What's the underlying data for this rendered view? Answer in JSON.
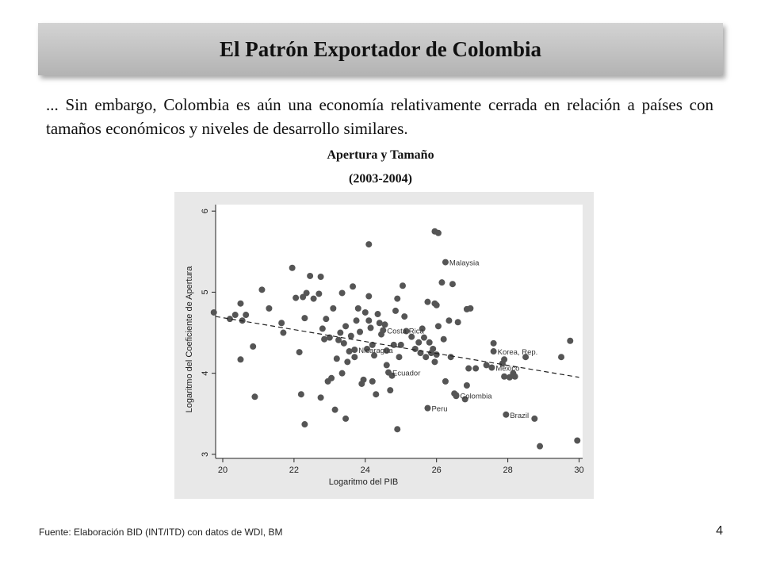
{
  "slide": {
    "title": "El Patrón Exportador de Colombia",
    "body": "... Sin embargo, Colombia es aún una economía relativamente cerrada en relación a países con tamaños económicos y niveles de desarrollo similares.",
    "chart_title": "Apertura y Tamaño",
    "chart_subtitle": "(2003-2004)",
    "footer": "Fuente: Elaboración BID (INT/ITD)  con datos de WDI, BM",
    "page_number": "4"
  },
  "colors": {
    "marker": "#555555",
    "panel_bg": "#e8e8e8",
    "plot_bg": "#ffffff",
    "fit_line": "#222222"
  },
  "chart_data": {
    "type": "scatter",
    "xlabel": "Logaritmo del PIB",
    "ylabel": "Logaritmo del Coeficiente de Apertura",
    "xlim": [
      19.8,
      30.1
    ],
    "ylim": [
      2.95,
      6.08
    ],
    "xticks": [
      20,
      22,
      24,
      26,
      28,
      30
    ],
    "yticks": [
      3,
      4,
      5,
      6
    ],
    "grid": false,
    "fit_line": {
      "style": "dashed",
      "x": [
        19.8,
        30.0
      ],
      "y": [
        4.7,
        3.95
      ]
    },
    "labeled_points": [
      {
        "label": "Malaysia",
        "x": 26.25,
        "y": 5.37
      },
      {
        "label": "Costa Rica",
        "x": 24.5,
        "y": 4.53
      },
      {
        "label": "Nicaragua",
        "x": 23.7,
        "y": 4.29
      },
      {
        "label": "Ecuador",
        "x": 24.65,
        "y": 4.01
      },
      {
        "label": "Korea, Rep.",
        "x": 27.6,
        "y": 4.27
      },
      {
        "label": "Mexico",
        "x": 27.55,
        "y": 4.07
      },
      {
        "label": "Colombia",
        "x": 26.55,
        "y": 3.73
      },
      {
        "label": "Peru",
        "x": 25.75,
        "y": 3.57
      },
      {
        "label": "Brazil",
        "x": 27.95,
        "y": 3.49
      }
    ],
    "points": [
      [
        19.75,
        4.75
      ],
      [
        20.2,
        4.67
      ],
      [
        20.35,
        4.72
      ],
      [
        20.5,
        4.86
      ],
      [
        20.55,
        4.65
      ],
      [
        20.65,
        4.72
      ],
      [
        20.85,
        4.33
      ],
      [
        20.9,
        3.71
      ],
      [
        20.5,
        4.17
      ],
      [
        21.1,
        5.03
      ],
      [
        21.3,
        4.8
      ],
      [
        21.65,
        4.62
      ],
      [
        21.7,
        4.5
      ],
      [
        21.95,
        5.3
      ],
      [
        22.05,
        4.93
      ],
      [
        22.15,
        4.26
      ],
      [
        22.2,
        3.74
      ],
      [
        22.25,
        4.94
      ],
      [
        22.3,
        4.68
      ],
      [
        22.35,
        4.99
      ],
      [
        22.3,
        3.37
      ],
      [
        22.45,
        5.2
      ],
      [
        22.55,
        4.92
      ],
      [
        22.7,
        4.98
      ],
      [
        22.75,
        5.19
      ],
      [
        22.75,
        3.7
      ],
      [
        22.8,
        4.55
      ],
      [
        22.85,
        4.42
      ],
      [
        22.9,
        4.67
      ],
      [
        22.95,
        3.9
      ],
      [
        23.0,
        4.44
      ],
      [
        23.05,
        3.94
      ],
      [
        23.1,
        4.8
      ],
      [
        23.15,
        3.55
      ],
      [
        23.2,
        4.18
      ],
      [
        23.25,
        4.41
      ],
      [
        23.3,
        4.5
      ],
      [
        23.35,
        4.0
      ],
      [
        23.45,
        4.58
      ],
      [
        23.35,
        4.99
      ],
      [
        23.4,
        4.37
      ],
      [
        23.45,
        3.44
      ],
      [
        23.5,
        4.14
      ],
      [
        23.55,
        4.27
      ],
      [
        23.6,
        4.46
      ],
      [
        23.65,
        5.07
      ],
      [
        23.7,
        4.2
      ],
      [
        23.75,
        4.65
      ],
      [
        23.8,
        4.8
      ],
      [
        23.85,
        4.51
      ],
      [
        23.9,
        3.87
      ],
      [
        23.95,
        3.92
      ],
      [
        24.0,
        4.75
      ],
      [
        24.05,
        4.3
      ],
      [
        24.1,
        4.65
      ],
      [
        24.1,
        4.95
      ],
      [
        24.15,
        4.56
      ],
      [
        24.2,
        4.35
      ],
      [
        24.25,
        4.22
      ],
      [
        24.1,
        5.59
      ],
      [
        24.2,
        3.9
      ],
      [
        24.3,
        3.74
      ],
      [
        24.35,
        4.73
      ],
      [
        24.4,
        4.62
      ],
      [
        24.45,
        4.48
      ],
      [
        24.55,
        4.6
      ],
      [
        24.6,
        4.1
      ],
      [
        24.6,
        4.28
      ],
      [
        24.7,
        3.79
      ],
      [
        24.75,
        3.97
      ],
      [
        24.8,
        4.35
      ],
      [
        24.85,
        4.77
      ],
      [
        24.9,
        4.92
      ],
      [
        24.95,
        4.2
      ],
      [
        25.0,
        4.35
      ],
      [
        25.05,
        5.08
      ],
      [
        25.1,
        4.7
      ],
      [
        25.15,
        4.52
      ],
      [
        24.9,
        3.31
      ],
      [
        25.3,
        4.45
      ],
      [
        25.4,
        4.3
      ],
      [
        25.5,
        4.38
      ],
      [
        25.55,
        4.25
      ],
      [
        25.6,
        4.55
      ],
      [
        25.65,
        4.44
      ],
      [
        25.7,
        4.2
      ],
      [
        25.75,
        4.88
      ],
      [
        25.8,
        4.38
      ],
      [
        25.85,
        4.25
      ],
      [
        25.9,
        4.3
      ],
      [
        25.95,
        4.86
      ],
      [
        25.95,
        4.14
      ],
      [
        26.0,
        4.84
      ],
      [
        26.0,
        4.23
      ],
      [
        26.05,
        4.58
      ],
      [
        25.95,
        5.75
      ],
      [
        26.05,
        5.73
      ],
      [
        26.15,
        5.12
      ],
      [
        26.2,
        4.42
      ],
      [
        26.25,
        3.9
      ],
      [
        26.35,
        4.65
      ],
      [
        26.4,
        4.2
      ],
      [
        26.45,
        5.1
      ],
      [
        26.5,
        3.75
      ],
      [
        26.55,
        3.72
      ],
      [
        26.6,
        4.63
      ],
      [
        26.8,
        3.68
      ],
      [
        26.85,
        3.85
      ],
      [
        26.85,
        4.79
      ],
      [
        26.9,
        4.06
      ],
      [
        26.95,
        4.8
      ],
      [
        27.1,
        4.06
      ],
      [
        27.4,
        4.1
      ],
      [
        27.6,
        4.37
      ],
      [
        27.85,
        4.12
      ],
      [
        27.9,
        4.17
      ],
      [
        27.9,
        3.96
      ],
      [
        28.05,
        3.95
      ],
      [
        28.15,
        4.0
      ],
      [
        28.2,
        3.96
      ],
      [
        28.5,
        4.2
      ],
      [
        28.75,
        3.44
      ],
      [
        28.9,
        3.1
      ],
      [
        29.5,
        4.2
      ],
      [
        29.75,
        4.4
      ],
      [
        29.95,
        3.17
      ]
    ]
  }
}
